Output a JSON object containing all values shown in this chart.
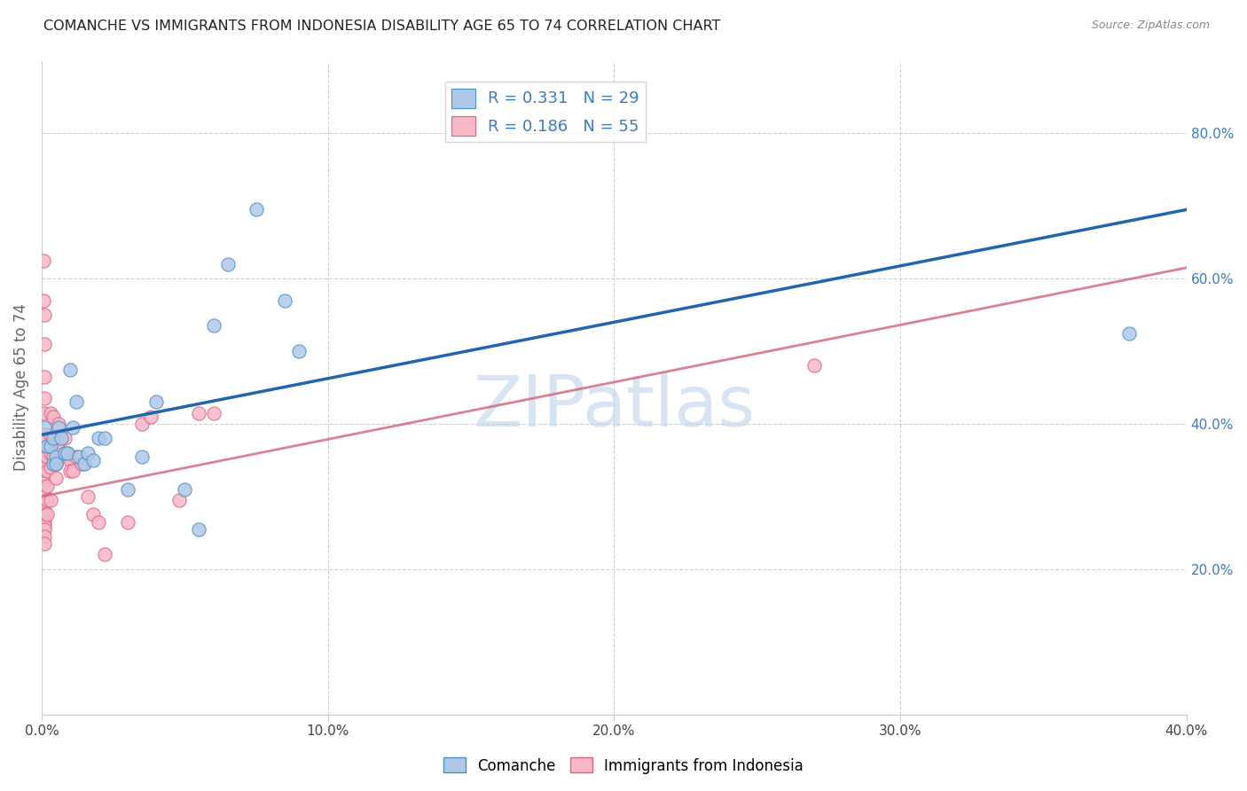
{
  "title": "COMANCHE VS IMMIGRANTS FROM INDONESIA DISABILITY AGE 65 TO 74 CORRELATION CHART",
  "source": "Source: ZipAtlas.com",
  "ylabel": "Disability Age 65 to 74",
  "xlim": [
    0.0,
    0.4
  ],
  "ylim": [
    0.0,
    0.9
  ],
  "xtick_labels": [
    "0.0%",
    "",
    "",
    "",
    "",
    "10.0%",
    "",
    "",
    "",
    "",
    "20.0%",
    "",
    "",
    "",
    "",
    "30.0%",
    "",
    "",
    "",
    "",
    "40.0%"
  ],
  "xtick_vals": [
    0.0,
    0.02,
    0.04,
    0.06,
    0.08,
    0.1,
    0.12,
    0.14,
    0.16,
    0.18,
    0.2,
    0.22,
    0.24,
    0.26,
    0.28,
    0.3,
    0.32,
    0.34,
    0.36,
    0.38,
    0.4
  ],
  "xtick_major_labels": [
    "0.0%",
    "10.0%",
    "20.0%",
    "30.0%",
    "40.0%"
  ],
  "xtick_major_vals": [
    0.0,
    0.1,
    0.2,
    0.3,
    0.4
  ],
  "ytick_labels_right": [
    "20.0%",
    "40.0%",
    "60.0%",
    "80.0%"
  ],
  "ytick_vals_right": [
    0.2,
    0.4,
    0.6,
    0.8
  ],
  "watermark": "ZIPatlas",
  "blue_color": "#aec8e8",
  "blue_edge_color": "#4a90c4",
  "pink_color": "#f7b8c8",
  "pink_edge_color": "#e06080",
  "blue_line_color": "#2166ac",
  "pink_line_color": "#d4607a",
  "right_axis_color": "#3a7bbf",
  "blue_scatter": [
    [
      0.001,
      0.395
    ],
    [
      0.002,
      0.37
    ],
    [
      0.003,
      0.37
    ],
    [
      0.004,
      0.345
    ],
    [
      0.004,
      0.38
    ],
    [
      0.005,
      0.355
    ],
    [
      0.005,
      0.345
    ],
    [
      0.006,
      0.395
    ],
    [
      0.007,
      0.38
    ],
    [
      0.008,
      0.36
    ],
    [
      0.009,
      0.36
    ],
    [
      0.01,
      0.475
    ],
    [
      0.011,
      0.395
    ],
    [
      0.012,
      0.43
    ],
    [
      0.013,
      0.355
    ],
    [
      0.015,
      0.345
    ],
    [
      0.016,
      0.36
    ],
    [
      0.018,
      0.35
    ],
    [
      0.02,
      0.38
    ],
    [
      0.022,
      0.38
    ],
    [
      0.03,
      0.31
    ],
    [
      0.035,
      0.355
    ],
    [
      0.04,
      0.43
    ],
    [
      0.05,
      0.31
    ],
    [
      0.055,
      0.255
    ],
    [
      0.06,
      0.535
    ],
    [
      0.065,
      0.62
    ],
    [
      0.075,
      0.695
    ],
    [
      0.085,
      0.57
    ],
    [
      0.09,
      0.5
    ],
    [
      0.38,
      0.525
    ]
  ],
  "pink_scatter": [
    [
      0.0005,
      0.625
    ],
    [
      0.0005,
      0.57
    ],
    [
      0.001,
      0.55
    ],
    [
      0.001,
      0.51
    ],
    [
      0.001,
      0.465
    ],
    [
      0.001,
      0.435
    ],
    [
      0.001,
      0.415
    ],
    [
      0.001,
      0.385
    ],
    [
      0.001,
      0.375
    ],
    [
      0.001,
      0.355
    ],
    [
      0.001,
      0.345
    ],
    [
      0.001,
      0.33
    ],
    [
      0.001,
      0.32
    ],
    [
      0.001,
      0.31
    ],
    [
      0.001,
      0.3
    ],
    [
      0.001,
      0.29
    ],
    [
      0.001,
      0.28
    ],
    [
      0.001,
      0.275
    ],
    [
      0.001,
      0.265
    ],
    [
      0.001,
      0.26
    ],
    [
      0.001,
      0.255
    ],
    [
      0.001,
      0.245
    ],
    [
      0.001,
      0.235
    ],
    [
      0.002,
      0.355
    ],
    [
      0.002,
      0.335
    ],
    [
      0.002,
      0.315
    ],
    [
      0.002,
      0.295
    ],
    [
      0.002,
      0.275
    ],
    [
      0.003,
      0.415
    ],
    [
      0.003,
      0.385
    ],
    [
      0.003,
      0.36
    ],
    [
      0.003,
      0.34
    ],
    [
      0.003,
      0.295
    ],
    [
      0.004,
      0.41
    ],
    [
      0.004,
      0.375
    ],
    [
      0.004,
      0.355
    ],
    [
      0.005,
      0.345
    ],
    [
      0.005,
      0.325
    ],
    [
      0.006,
      0.4
    ],
    [
      0.006,
      0.375
    ],
    [
      0.007,
      0.355
    ],
    [
      0.008,
      0.38
    ],
    [
      0.009,
      0.36
    ],
    [
      0.01,
      0.355
    ],
    [
      0.01,
      0.35
    ],
    [
      0.01,
      0.335
    ],
    [
      0.011,
      0.335
    ],
    [
      0.012,
      0.355
    ],
    [
      0.014,
      0.345
    ],
    [
      0.016,
      0.3
    ],
    [
      0.018,
      0.275
    ],
    [
      0.02,
      0.265
    ],
    [
      0.022,
      0.22
    ],
    [
      0.03,
      0.265
    ],
    [
      0.035,
      0.4
    ],
    [
      0.038,
      0.41
    ],
    [
      0.048,
      0.295
    ],
    [
      0.055,
      0.415
    ],
    [
      0.06,
      0.415
    ],
    [
      0.27,
      0.48
    ]
  ],
  "blue_trendline": [
    [
      0.0,
      0.385
    ],
    [
      0.4,
      0.695
    ]
  ],
  "pink_trendline": [
    [
      0.0,
      0.3
    ],
    [
      0.4,
      0.615
    ]
  ]
}
